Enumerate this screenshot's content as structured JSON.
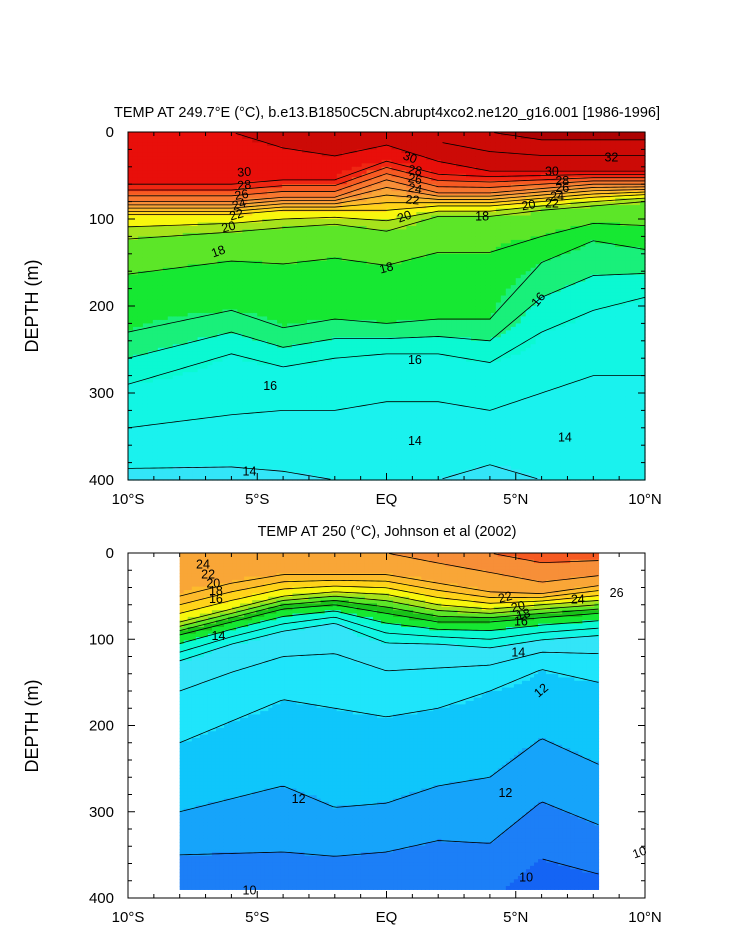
{
  "chart_data": [
    {
      "type": "heatmap",
      "subtype": "filled-contour-depth-section",
      "title": "TEMP AT 249.7°E (°C), b.e13.B1850C5CN.abrupt4xco2.ne120_g16.001 [1986-1996]",
      "xlabel": "",
      "ylabel": "DEPTH (m)",
      "xlim": [
        -10,
        10
      ],
      "ylim": [
        0,
        400
      ],
      "y_inverted": true,
      "x_ticks": [
        {
          "value": -10,
          "label": "10°S"
        },
        {
          "value": -5,
          "label": "5°S"
        },
        {
          "value": 0,
          "label": "EQ"
        },
        {
          "value": 5,
          "label": "5°N"
        },
        {
          "value": 10,
          "label": "10°N"
        }
      ],
      "y_ticks": [
        {
          "value": 0,
          "label": "0"
        },
        {
          "value": 100,
          "label": "100"
        },
        {
          "value": 200,
          "label": "200"
        },
        {
          "value": 300,
          "label": "300"
        },
        {
          "value": 400,
          "label": "400"
        }
      ],
      "data_xlim": [
        -10,
        10
      ],
      "contour_interval": 1,
      "levels_colors": [
        {
          "min": 12,
          "max": 14,
          "color": "#33e5f8"
        },
        {
          "min": 14,
          "max": 15,
          "color": "#1af2ee"
        },
        {
          "min": 15,
          "max": 16,
          "color": "#12f6e4"
        },
        {
          "min": 16,
          "max": 17,
          "color": "#0bf9d2"
        },
        {
          "min": 17,
          "max": 18,
          "color": "#19f07a"
        },
        {
          "min": 18,
          "max": 19,
          "color": "#16e832"
        },
        {
          "min": 19,
          "max": 20,
          "color": "#5ce628"
        },
        {
          "min": 20,
          "max": 21,
          "color": "#a6e31c"
        },
        {
          "min": 21,
          "max": 22,
          "color": "#f8f70e"
        },
        {
          "min": 22,
          "max": 23,
          "color": "#ffd31a"
        },
        {
          "min": 23,
          "max": 24,
          "color": "#fdbb2c"
        },
        {
          "min": 24,
          "max": 25,
          "color": "#f9a637"
        },
        {
          "min": 25,
          "max": 26,
          "color": "#f78f38"
        },
        {
          "min": 26,
          "max": 27,
          "color": "#f7772f"
        },
        {
          "min": 27,
          "max": 28,
          "color": "#f65a22"
        },
        {
          "min": 28,
          "max": 29,
          "color": "#ef2612"
        },
        {
          "min": 29,
          "max": 30,
          "color": "#e80f0a"
        },
        {
          "min": 30,
          "max": 32,
          "color": "#cc0a06"
        },
        {
          "min": 32,
          "max": 34,
          "color": "#ad0302"
        }
      ],
      "profile_x": [
        -10,
        -6,
        -4,
        -2,
        0,
        2,
        4,
        6,
        8,
        10
      ],
      "profiles": [
        {
          "x": -10,
          "depths": [
            0,
            60,
            80,
            95,
            130,
            230,
            290,
            340,
            380,
            400
          ],
          "temps": [
            30,
            29,
            26,
            22,
            19.5,
            18,
            16,
            15,
            14.1,
            13.8
          ]
        },
        {
          "x": -6,
          "depths": [
            0,
            60,
            80,
            95,
            120,
            205,
            255,
            325,
            385,
            400
          ],
          "temps": [
            30,
            29,
            26,
            22,
            19.5,
            18,
            16,
            15,
            14,
            13.8
          ]
        },
        {
          "x": -4,
          "depths": [
            0,
            55,
            75,
            90,
            115,
            225,
            270,
            320,
            390,
            400
          ],
          "temps": [
            30.5,
            29,
            26,
            22,
            19.5,
            18,
            16,
            15,
            14,
            13.9
          ]
        },
        {
          "x": -2,
          "depths": [
            0,
            55,
            75,
            90,
            110,
            215,
            260,
            320,
            380,
            400
          ],
          "temps": [
            31,
            29,
            26,
            22,
            19.5,
            18,
            16,
            15,
            14.1,
            14
          ]
        },
        {
          "x": 0,
          "depths": [
            0,
            30,
            55,
            90,
            120,
            220,
            255,
            310,
            365,
            400
          ],
          "temps": [
            30.5,
            29.5,
            26,
            22,
            19.5,
            18,
            16,
            15,
            14.2,
            14
          ]
        },
        {
          "x": 2,
          "depths": [
            0,
            45,
            70,
            85,
            100,
            215,
            255,
            310,
            355,
            400
          ],
          "temps": [
            31.5,
            29.5,
            26,
            22,
            19.5,
            18,
            16,
            15,
            14.2,
            14
          ]
        },
        {
          "x": 4,
          "depths": [
            0,
            45,
            70,
            85,
            100,
            215,
            265,
            320,
            365,
            400
          ],
          "temps": [
            32,
            30,
            26,
            22,
            19.5,
            18,
            16,
            15,
            14.1,
            13.9
          ]
        },
        {
          "x": 6,
          "depths": [
            0,
            45,
            65,
            80,
            90,
            150,
            230,
            300,
            360,
            400
          ],
          "temps": [
            32.5,
            30,
            26,
            22,
            20,
            18,
            16,
            15,
            14.1,
            14
          ]
        },
        {
          "x": 8,
          "depths": [
            0,
            45,
            60,
            75,
            85,
            125,
            205,
            280,
            345,
            400
          ],
          "temps": [
            32.5,
            30,
            26,
            22,
            20,
            18,
            16,
            15,
            14.2,
            14
          ]
        },
        {
          "x": 10,
          "depths": [
            0,
            45,
            60,
            72,
            80,
            135,
            190,
            280,
            335,
            400
          ],
          "temps": [
            32.5,
            30,
            26,
            22,
            20,
            18,
            16,
            15,
            14.2,
            14
          ]
        }
      ],
      "contour_labels": [
        {
          "text": "30",
          "x": -5.5,
          "depth": 47,
          "angle": -5
        },
        {
          "text": "28",
          "x": -5.5,
          "depth": 62,
          "angle": -5
        },
        {
          "text": "26",
          "x": -5.6,
          "depth": 73,
          "angle": -10
        },
        {
          "text": "24",
          "x": -5.7,
          "depth": 84,
          "angle": -15
        },
        {
          "text": "22",
          "x": -5.8,
          "depth": 96,
          "angle": -15
        },
        {
          "text": "20",
          "x": -6.1,
          "depth": 110,
          "angle": -15
        },
        {
          "text": "18",
          "x": -6.5,
          "depth": 138,
          "angle": -20
        },
        {
          "text": "30",
          "x": 0.9,
          "depth": 30,
          "angle": 20
        },
        {
          "text": "28",
          "x": 1.1,
          "depth": 45,
          "angle": 10
        },
        {
          "text": "26",
          "x": 1.1,
          "depth": 55,
          "angle": 10
        },
        {
          "text": "24",
          "x": 1.1,
          "depth": 66,
          "angle": 10
        },
        {
          "text": "22",
          "x": 1.0,
          "depth": 79,
          "angle": 5
        },
        {
          "text": "20",
          "x": 0.7,
          "depth": 98,
          "angle": -20
        },
        {
          "text": "18",
          "x": 0.0,
          "depth": 157,
          "angle": -15
        },
        {
          "text": "30",
          "x": 6.4,
          "depth": 46,
          "angle": 0
        },
        {
          "text": "28",
          "x": 6.8,
          "depth": 57,
          "angle": 0
        },
        {
          "text": "26",
          "x": 6.8,
          "depth": 65,
          "angle": 0
        },
        {
          "text": "24",
          "x": 6.6,
          "depth": 75,
          "angle": 0
        },
        {
          "text": "22",
          "x": 6.4,
          "depth": 83,
          "angle": 0
        },
        {
          "text": "20",
          "x": 5.5,
          "depth": 85,
          "angle": -10
        },
        {
          "text": "18",
          "x": 3.7,
          "depth": 98,
          "angle": 0
        },
        {
          "text": "16",
          "x": 5.9,
          "depth": 193,
          "angle": -50
        },
        {
          "text": "32",
          "x": 8.7,
          "depth": 30,
          "angle": 0
        },
        {
          "text": "16",
          "x": 1.1,
          "depth": 263,
          "angle": 0
        },
        {
          "text": "16",
          "x": -4.5,
          "depth": 293,
          "angle": 0
        },
        {
          "text": "14",
          "x": 1.1,
          "depth": 356,
          "angle": 0
        },
        {
          "text": "14",
          "x": 6.9,
          "depth": 352,
          "angle": 0
        },
        {
          "text": "14",
          "x": -5.3,
          "depth": 391,
          "angle": 0
        }
      ]
    },
    {
      "type": "heatmap",
      "subtype": "filled-contour-depth-section",
      "title": "TEMP AT 250 (°C), Johnson et al (2002)",
      "xlabel": "",
      "ylabel": "DEPTH (m)",
      "xlim": [
        -10,
        10
      ],
      "ylim": [
        0,
        400
      ],
      "y_inverted": true,
      "x_ticks": [
        {
          "value": -10,
          "label": "10°S"
        },
        {
          "value": -5,
          "label": "5°S"
        },
        {
          "value": 0,
          "label": "EQ"
        },
        {
          "value": 5,
          "label": "5°N"
        },
        {
          "value": 10,
          "label": "10°N"
        }
      ],
      "y_ticks": [
        {
          "value": 0,
          "label": "0"
        },
        {
          "value": 100,
          "label": "100"
        },
        {
          "value": 200,
          "label": "200"
        },
        {
          "value": 300,
          "label": "300"
        },
        {
          "value": 400,
          "label": "400"
        }
      ],
      "data_xlim": [
        -8,
        8.2
      ],
      "data_ylim": [
        0,
        390
      ],
      "contour_interval": 1,
      "levels_colors": [
        {
          "min": 8,
          "max": 10,
          "color": "#1464f4"
        },
        {
          "min": 10,
          "max": 11,
          "color": "#1c7ff7"
        },
        {
          "min": 11,
          "max": 12,
          "color": "#16a4fa"
        },
        {
          "min": 12,
          "max": 13,
          "color": "#0fc6fb"
        },
        {
          "min": 13,
          "max": 14,
          "color": "#1fe5fb"
        },
        {
          "min": 14,
          "max": 15,
          "color": "#33e5f8"
        },
        {
          "min": 15,
          "max": 16,
          "color": "#12f6e4"
        },
        {
          "min": 16,
          "max": 17,
          "color": "#0bf9d2"
        },
        {
          "min": 17,
          "max": 18,
          "color": "#16e832"
        },
        {
          "min": 18,
          "max": 19,
          "color": "#19c219"
        },
        {
          "min": 19,
          "max": 20,
          "color": "#5ce628"
        },
        {
          "min": 20,
          "max": 21,
          "color": "#a6e31c"
        },
        {
          "min": 21,
          "max": 22,
          "color": "#f8f70e"
        },
        {
          "min": 22,
          "max": 23,
          "color": "#ffd31a"
        },
        {
          "min": 23,
          "max": 24,
          "color": "#fdbb2c"
        },
        {
          "min": 24,
          "max": 25,
          "color": "#f9a637"
        },
        {
          "min": 25,
          "max": 26,
          "color": "#f78f38"
        },
        {
          "min": 26,
          "max": 28,
          "color": "#f65a22"
        }
      ],
      "profile_x": [
        -8,
        -6,
        -4,
        -2,
        0,
        2,
        4,
        6,
        8.2
      ],
      "profiles": [
        {
          "x": -8,
          "depths": [
            0,
            50,
            80,
            95,
            130,
            220,
            300,
            375,
            390
          ],
          "temps": [
            25,
            24,
            21,
            18,
            14.5,
            13,
            12,
            10.5,
            10
          ]
        },
        {
          "x": -6,
          "depths": [
            0,
            35,
            65,
            80,
            110,
            195,
            285,
            380,
            390
          ],
          "temps": [
            25,
            24,
            21,
            18,
            14.5,
            13,
            12,
            10.5,
            10
          ]
        },
        {
          "x": -4,
          "depths": [
            0,
            25,
            50,
            65,
            95,
            170,
            270,
            385,
            390
          ],
          "temps": [
            25,
            24,
            21,
            18,
            14.5,
            13,
            12,
            10.5,
            10.2
          ]
        },
        {
          "x": -2,
          "depths": [
            0,
            25,
            45,
            60,
            85,
            180,
            295,
            380,
            390
          ],
          "temps": [
            25,
            24,
            21,
            18,
            14.5,
            13,
            12,
            10.5,
            10.2
          ]
        },
        {
          "x": 0,
          "depths": [
            0,
            25,
            48,
            70,
            110,
            190,
            290,
            375,
            390
          ],
          "temps": [
            25,
            24,
            21,
            18,
            14.5,
            13,
            12,
            10.5,
            10.3
          ]
        },
        {
          "x": 2,
          "depths": [
            0,
            35,
            60,
            80,
            110,
            180,
            270,
            365,
            390
          ],
          "temps": [
            25.5,
            24,
            21,
            18,
            14.5,
            13,
            12,
            10.5,
            10.3
          ]
        },
        {
          "x": 4,
          "depths": [
            0,
            45,
            65,
            80,
            115,
            160,
            260,
            375,
            390
          ],
          "temps": [
            26,
            24,
            21,
            18,
            14.5,
            13,
            12,
            10.5,
            10.2
          ]
        },
        {
          "x": 6,
          "depths": [
            0,
            45,
            60,
            75,
            105,
            135,
            215,
            325,
            390
          ],
          "temps": [
            26.5,
            24.5,
            21,
            18,
            14.5,
            13,
            12,
            10.5,
            9.4
          ]
        },
        {
          "x": 8.2,
          "depths": [
            0,
            35,
            55,
            70,
            100,
            150,
            245,
            350,
            390
          ],
          "temps": [
            26.5,
            24.5,
            21,
            18,
            14.5,
            13,
            12,
            10.5,
            9.6
          ]
        }
      ],
      "contour_labels": [
        {
          "text": "24",
          "x": -7.1,
          "depth": 14,
          "angle": 0
        },
        {
          "text": "22",
          "x": -6.9,
          "depth": 26,
          "angle": 0
        },
        {
          "text": "20",
          "x": -6.7,
          "depth": 36,
          "angle": 0
        },
        {
          "text": "18",
          "x": -6.6,
          "depth": 45,
          "angle": 0
        },
        {
          "text": "16",
          "x": -6.6,
          "depth": 54,
          "angle": 0
        },
        {
          "text": "14",
          "x": -6.5,
          "depth": 97,
          "angle": 0
        },
        {
          "text": "22",
          "x": 4.6,
          "depth": 52,
          "angle": -15
        },
        {
          "text": "20",
          "x": 5.1,
          "depth": 63,
          "angle": -15
        },
        {
          "text": "18",
          "x": 5.3,
          "depth": 72,
          "angle": -15
        },
        {
          "text": "16",
          "x": 5.2,
          "depth": 80,
          "angle": 0
        },
        {
          "text": "24",
          "x": 7.4,
          "depth": 55,
          "angle": 0
        },
        {
          "text": "26",
          "x": 8.9,
          "depth": 47,
          "angle": 0
        },
        {
          "text": "14",
          "x": 5.1,
          "depth": 116,
          "angle": 0
        },
        {
          "text": "12",
          "x": 6.0,
          "depth": 160,
          "angle": -40
        },
        {
          "text": "12",
          "x": -3.4,
          "depth": 286,
          "angle": 0
        },
        {
          "text": "12",
          "x": 4.6,
          "depth": 279,
          "angle": 0
        },
        {
          "text": "10",
          "x": -5.3,
          "depth": 392,
          "angle": 0
        },
        {
          "text": "10",
          "x": 5.4,
          "depth": 377,
          "angle": 0
        },
        {
          "text": "10",
          "x": 9.8,
          "depth": 348,
          "angle": -20
        }
      ]
    }
  ]
}
